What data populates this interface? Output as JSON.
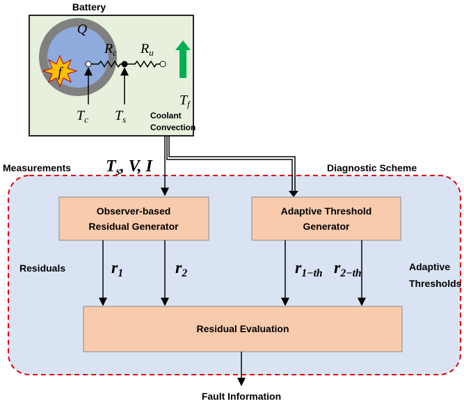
{
  "battery": {
    "title": "Battery",
    "heat": "Q",
    "fault": "f",
    "r_c": {
      "base": "R",
      "sub": "c"
    },
    "r_u": {
      "base": "R",
      "sub": "u"
    },
    "t_f": {
      "base": "T",
      "sub": "f"
    },
    "t_c": {
      "base": "T",
      "sub": "c"
    },
    "t_s": {
      "base": "T",
      "sub": "s"
    },
    "coolant": [
      "Coolant",
      "Convection"
    ]
  },
  "measurements": {
    "label": "Measurements",
    "base": "T",
    "sub": "s",
    "rest": ", V, I"
  },
  "scheme": {
    "title": "Diagnostic Scheme",
    "observer": [
      "Observer-based",
      "Residual Generator"
    ],
    "threshold": [
      "Adaptive Threshold",
      "Generator"
    ],
    "residuals_label": "Residuals",
    "r1": {
      "base": "r",
      "sub": "1"
    },
    "r2": {
      "base": "r",
      "sub": "2"
    },
    "r1th": {
      "base": "r",
      "sub": "1−th"
    },
    "r2th": {
      "base": "r",
      "sub": "2−th"
    },
    "thresholds_label": [
      "Adaptive",
      "Thresholds"
    ],
    "evaluation": "Residual Evaluation"
  },
  "output": "Fault Information"
}
